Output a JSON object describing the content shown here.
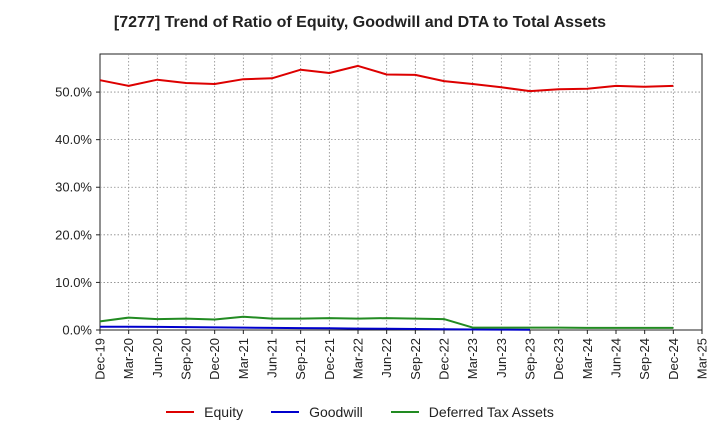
{
  "chart_data": {
    "type": "line",
    "title": "[7277]  Trend of Ratio of Equity, Goodwill and DTA to Total Assets",
    "xlabel": "",
    "ylabel": "",
    "ylim": [
      0,
      58
    ],
    "yticks": [
      0,
      10,
      20,
      30,
      40,
      50
    ],
    "ytick_labels": [
      "0.0%",
      "10.0%",
      "20.0%",
      "30.0%",
      "40.0%",
      "50.0%"
    ],
    "grid": true,
    "legend_position": "bottom",
    "categories": [
      "Dec-19",
      "Mar-20",
      "Jun-20",
      "Sep-20",
      "Dec-20",
      "Mar-21",
      "Jun-21",
      "Sep-21",
      "Dec-21",
      "Mar-22",
      "Jun-22",
      "Sep-22",
      "Dec-22",
      "Mar-23",
      "Jun-23",
      "Sep-23",
      "Dec-23",
      "Mar-24",
      "Jun-24",
      "Sep-24",
      "Dec-24",
      "Mar-25"
    ],
    "series": [
      {
        "name": "Equity",
        "color": "#dd0000",
        "values": [
          52.5,
          51.3,
          52.6,
          51.9,
          51.7,
          52.7,
          52.9,
          54.7,
          54.0,
          55.5,
          53.7,
          53.6,
          52.3,
          51.7,
          51.0,
          50.2,
          50.6,
          50.7,
          51.3,
          51.1,
          51.3,
          null
        ]
      },
      {
        "name": "Goodwill",
        "color": "#0000cc",
        "values": [
          0.7,
          0.7,
          0.65,
          0.6,
          0.55,
          0.5,
          0.45,
          0.4,
          0.35,
          0.3,
          0.25,
          0.2,
          0.15,
          0.1,
          0.08,
          0.05,
          null,
          null,
          null,
          null,
          null,
          null
        ]
      },
      {
        "name": "Deferred Tax Assets",
        "color": "#228b22",
        "values": [
          1.8,
          2.6,
          2.3,
          2.4,
          2.2,
          2.8,
          2.4,
          2.4,
          2.5,
          2.4,
          2.5,
          2.4,
          2.3,
          0.5,
          0.5,
          0.5,
          0.5,
          0.45,
          0.45,
          0.45,
          0.45,
          null
        ]
      }
    ]
  }
}
